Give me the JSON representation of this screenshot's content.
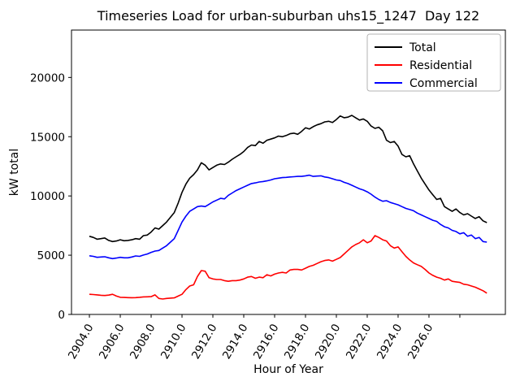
{
  "chart_data": {
    "type": "line",
    "title": "Timeseries Load for urban-suburban uhs15_1247  Day 122",
    "xlabel": "Hour of Year",
    "ylabel": "kW total",
    "xlim": [
      2902.84,
      2930.95
    ],
    "ylim": [
      0,
      24000
    ],
    "grid": false,
    "x_tick_values": [
      2904,
      2906,
      2908,
      2910,
      2912,
      2914,
      2916,
      2918,
      2920,
      2922,
      2924,
      2926,
      2928
    ],
    "x_tick_labels": [
      "2904.0",
      "2906.0",
      "2908.0",
      "2910.0",
      "2912.0",
      "2914.0",
      "2916.0",
      "2918.0",
      "2920.0",
      "2922.0",
      "2924.0",
      "2926.0",
      ""
    ],
    "y_tick_values": [
      0,
      5000,
      10000,
      15000,
      20000
    ],
    "y_tick_labels": [
      "0",
      "5000",
      "10000",
      "15000",
      "20000"
    ],
    "legend": {
      "position": "upper right",
      "entries": [
        {
          "label": "Total",
          "color": "#000000"
        },
        {
          "label": "Residential",
          "color": "#ff0000"
        },
        {
          "label": "Commercial",
          "color": "#0000ff"
        }
      ]
    },
    "x": [
      2904.0,
      2904.25,
      2904.5,
      2904.75,
      2905.0,
      2905.25,
      2905.5,
      2905.75,
      2906.0,
      2906.25,
      2906.5,
      2906.75,
      2907.0,
      2907.25,
      2907.5,
      2907.75,
      2908.0,
      2908.25,
      2908.5,
      2908.75,
      2909.0,
      2909.25,
      2909.5,
      2909.75,
      2910.0,
      2910.25,
      2910.5,
      2910.75,
      2911.0,
      2911.25,
      2911.5,
      2911.75,
      2912.0,
      2912.25,
      2912.5,
      2912.75,
      2913.0,
      2913.25,
      2913.5,
      2913.75,
      2914.0,
      2914.25,
      2914.5,
      2914.75,
      2915.0,
      2915.25,
      2915.5,
      2915.75,
      2916.0,
      2916.25,
      2916.5,
      2916.75,
      2917.0,
      2917.25,
      2917.5,
      2917.75,
      2918.0,
      2918.25,
      2918.5,
      2918.75,
      2919.0,
      2919.25,
      2919.5,
      2919.75,
      2920.0,
      2920.25,
      2920.5,
      2920.75,
      2921.0,
      2921.25,
      2921.5,
      2921.75,
      2922.0,
      2922.25,
      2922.5,
      2922.75,
      2923.0,
      2923.25,
      2923.5,
      2923.75,
      2924.0,
      2924.25,
      2924.5,
      2924.75,
      2925.0,
      2925.25,
      2925.5,
      2925.75,
      2926.0,
      2926.25,
      2926.5,
      2926.75,
      2927.0,
      2927.25,
      2927.5,
      2927.75,
      2928.0,
      2928.25,
      2928.5,
      2928.75,
      2929.0,
      2929.25,
      2929.5,
      2929.75
    ],
    "series": [
      {
        "name": "Total",
        "color": "#000000",
        "values": [
          6600,
          6500,
          6350,
          6400,
          6450,
          6250,
          6150,
          6200,
          6300,
          6220,
          6250,
          6300,
          6400,
          6350,
          6650,
          6700,
          6950,
          7300,
          7200,
          7500,
          7800,
          8200,
          8600,
          9400,
          10300,
          11000,
          11500,
          11800,
          12200,
          12800,
          12600,
          12200,
          12400,
          12600,
          12700,
          12650,
          12850,
          13100,
          13300,
          13500,
          13750,
          14100,
          14300,
          14250,
          14600,
          14450,
          14700,
          14800,
          14900,
          15050,
          15000,
          15100,
          15250,
          15300,
          15200,
          15450,
          15750,
          15650,
          15850,
          16000,
          16100,
          16250,
          16300,
          16200,
          16450,
          16750,
          16600,
          16650,
          16800,
          16600,
          16400,
          16500,
          16300,
          15900,
          15700,
          15800,
          15500,
          14700,
          14500,
          14600,
          14200,
          13500,
          13300,
          13400,
          12700,
          12100,
          11500,
          11000,
          10500,
          10100,
          9700,
          9800,
          9100,
          8900,
          8700,
          8900,
          8600,
          8400,
          8500,
          8300,
          8100,
          8250,
          7900,
          7750
        ]
      },
      {
        "name": "Residential",
        "color": "#ff0000",
        "values": [
          1700,
          1680,
          1650,
          1620,
          1600,
          1630,
          1700,
          1550,
          1450,
          1430,
          1420,
          1410,
          1420,
          1450,
          1480,
          1490,
          1500,
          1650,
          1350,
          1300,
          1350,
          1380,
          1400,
          1550,
          1700,
          2100,
          2400,
          2500,
          3200,
          3700,
          3650,
          3100,
          3000,
          2950,
          2950,
          2850,
          2800,
          2850,
          2850,
          2900,
          3000,
          3150,
          3200,
          3050,
          3150,
          3100,
          3350,
          3250,
          3400,
          3500,
          3550,
          3500,
          3750,
          3800,
          3800,
          3750,
          3900,
          4050,
          4150,
          4300,
          4450,
          4550,
          4600,
          4500,
          4650,
          4800,
          5100,
          5400,
          5700,
          5900,
          6050,
          6300,
          6050,
          6200,
          6650,
          6500,
          6300,
          6200,
          5800,
          5600,
          5700,
          5300,
          4900,
          4600,
          4350,
          4200,
          4050,
          3800,
          3500,
          3300,
          3150,
          3050,
          2900,
          3000,
          2800,
          2750,
          2700,
          2550,
          2500,
          2400,
          2300,
          2150,
          2000,
          1800
        ]
      },
      {
        "name": "Commercial",
        "color": "#0000ff",
        "values": [
          4950,
          4900,
          4820,
          4850,
          4870,
          4780,
          4710,
          4760,
          4820,
          4780,
          4780,
          4850,
          4940,
          4900,
          5010,
          5100,
          5240,
          5350,
          5400,
          5600,
          5800,
          6100,
          6400,
          7100,
          7800,
          8300,
          8700,
          8900,
          9100,
          9150,
          9100,
          9300,
          9500,
          9650,
          9800,
          9750,
          10050,
          10250,
          10450,
          10600,
          10750,
          10900,
          11050,
          11100,
          11180,
          11220,
          11270,
          11350,
          11450,
          11500,
          11550,
          11570,
          11600,
          11620,
          11650,
          11650,
          11700,
          11750,
          11650,
          11680,
          11700,
          11600,
          11550,
          11450,
          11350,
          11300,
          11150,
          11050,
          10900,
          10750,
          10600,
          10500,
          10350,
          10150,
          9900,
          9700,
          9550,
          9600,
          9450,
          9350,
          9250,
          9100,
          8950,
          8850,
          8750,
          8550,
          8400,
          8250,
          8100,
          7950,
          7850,
          7600,
          7400,
          7300,
          7100,
          7000,
          6800,
          6900,
          6600,
          6700,
          6400,
          6500,
          6150,
          6100
        ]
      }
    ]
  }
}
